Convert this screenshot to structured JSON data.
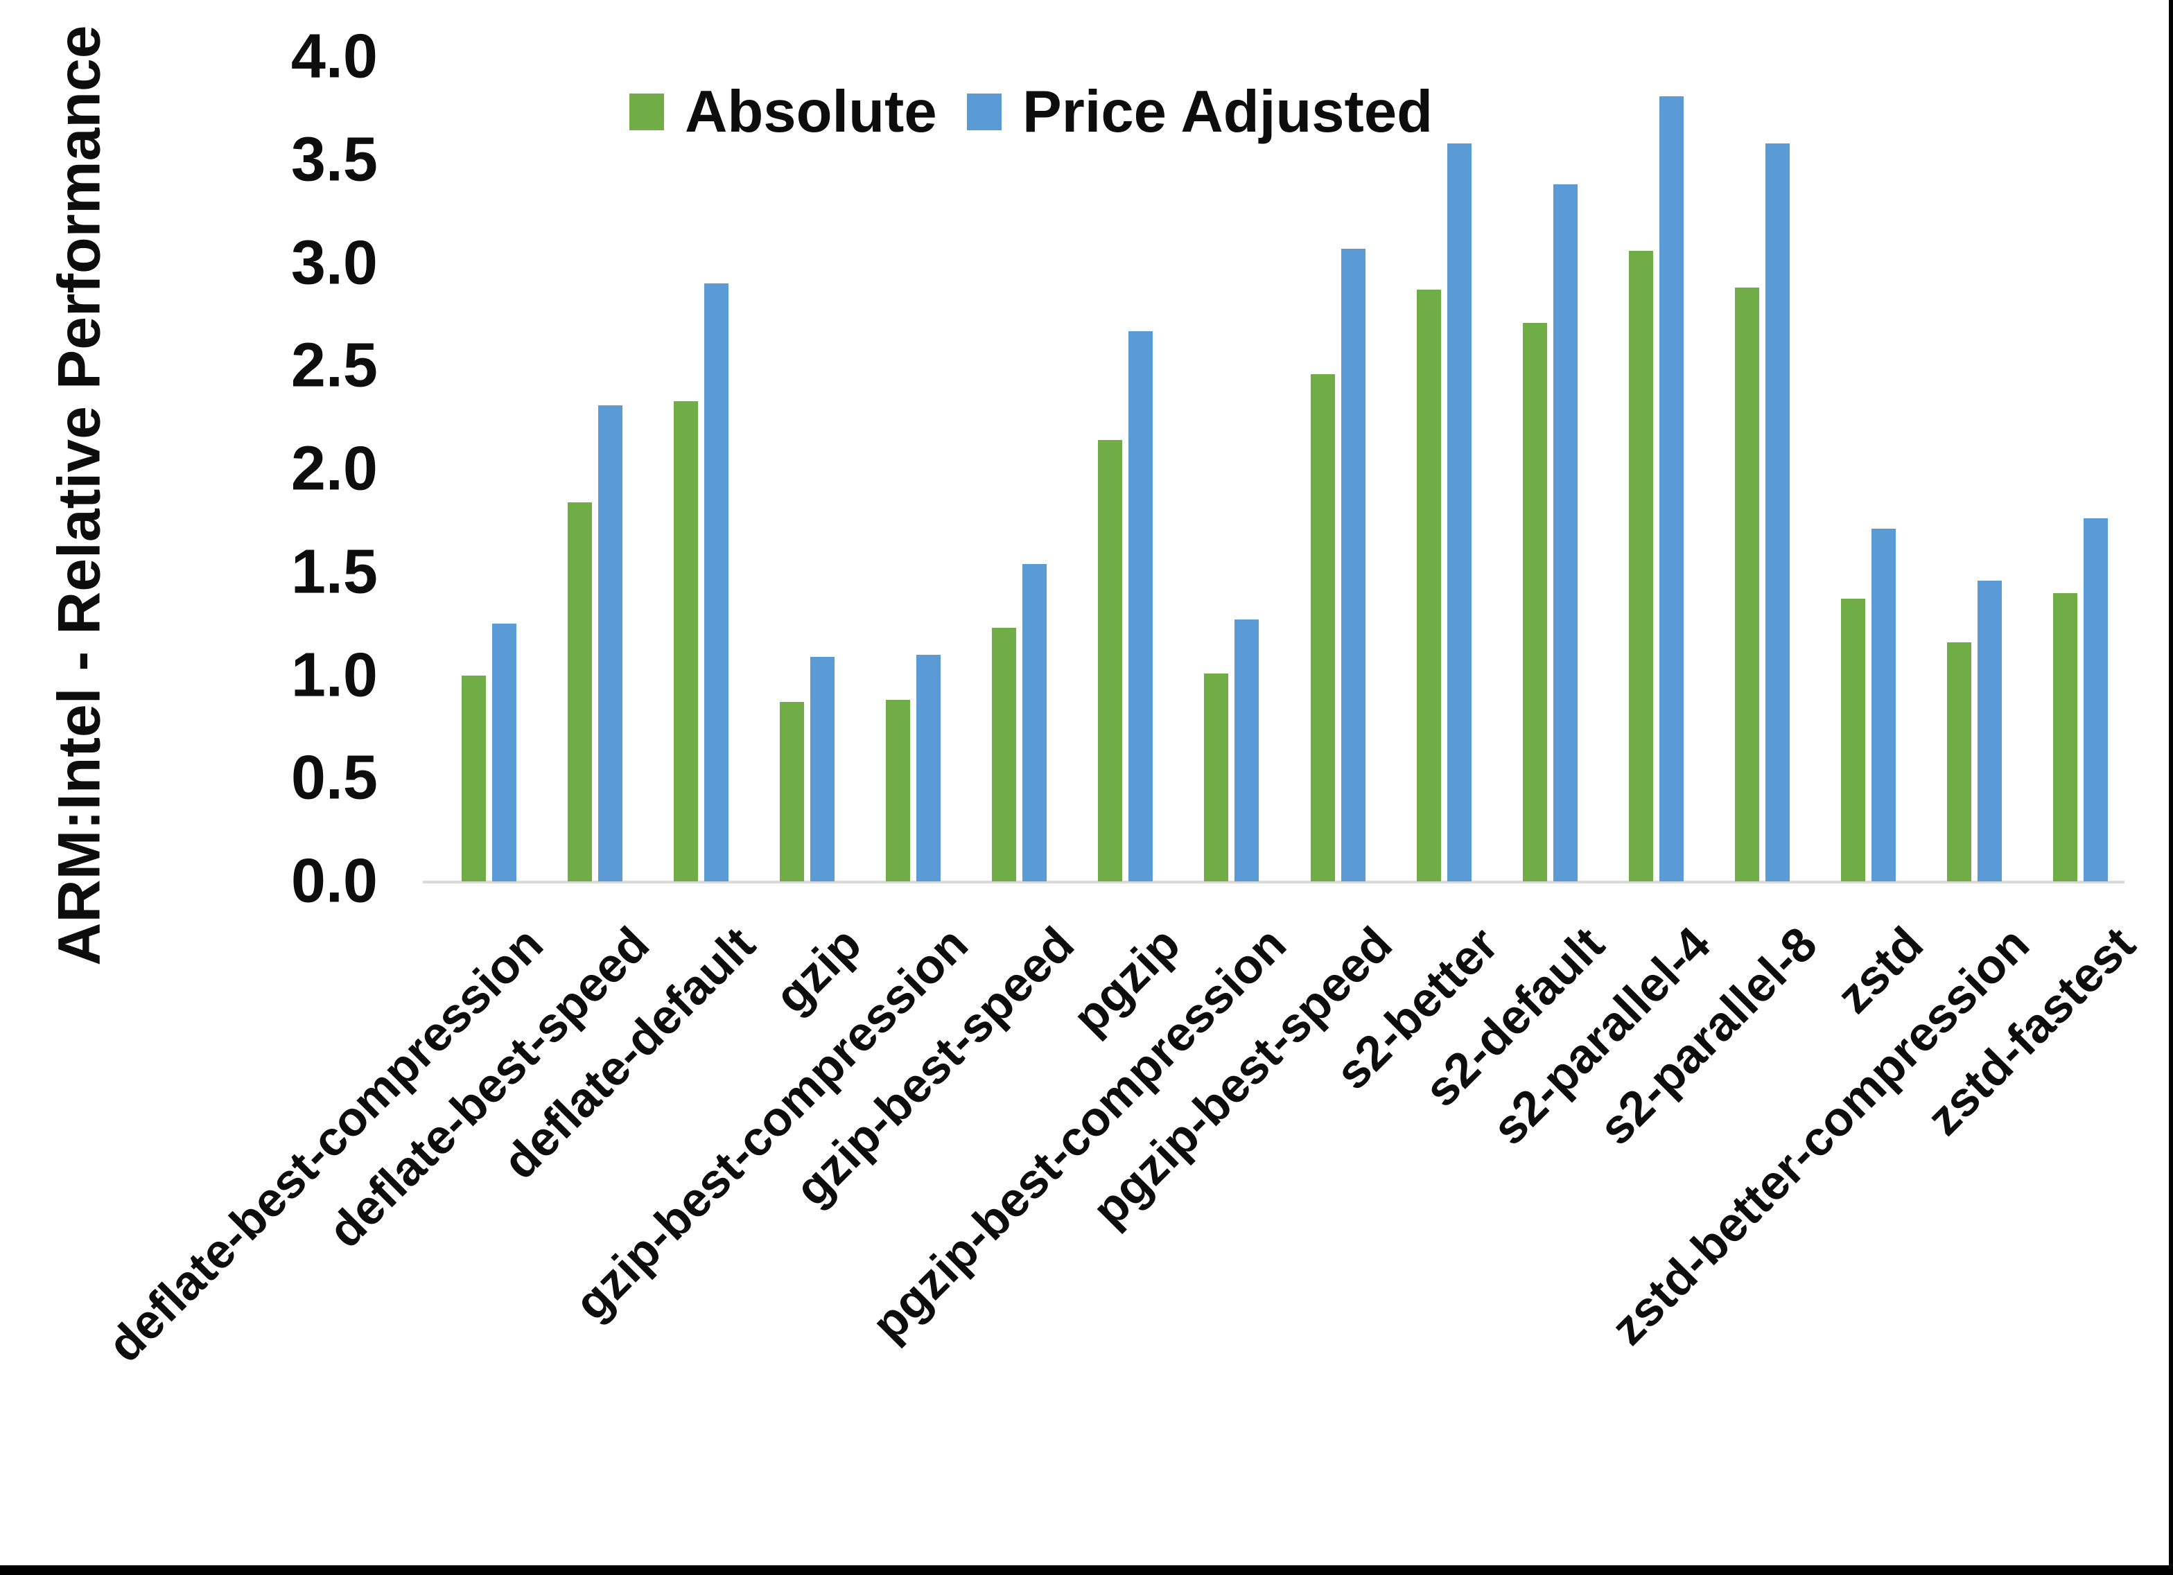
{
  "chart_data": {
    "type": "bar",
    "title": "",
    "ylabel": "ARM:Intel - Relative Performance",
    "xlabel": "",
    "ylim": [
      0,
      4
    ],
    "grid": false,
    "legend_position": "top-center",
    "y_axis": {
      "tick_labels": [
        "0.0",
        "0.5",
        "1.0",
        "1.5",
        "2.0",
        "2.5",
        "3.0",
        "3.5",
        "4.0"
      ],
      "tick_values": [
        0.0,
        0.5,
        1.0,
        1.5,
        2.0,
        2.5,
        3.0,
        3.5,
        4.0
      ]
    },
    "categories": [
      "deflate-best-compression",
      "deflate-best-speed",
      "deflate-default",
      "gzip",
      "gzip-best-compression",
      "gzip-best-speed",
      "pgzip",
      "pgzip-best-compression",
      "pgzip-best-speed",
      "s2-better",
      "s2-default",
      "s2-parallel-4",
      "s2-parallel-8",
      "zstd",
      "zstd-better-compression",
      "zstd-fastest"
    ],
    "series": [
      {
        "name": "Absolute",
        "color": "#70AD47",
        "values": [
          1.0,
          1.84,
          2.33,
          0.87,
          0.88,
          1.23,
          2.14,
          1.01,
          2.46,
          2.87,
          2.71,
          3.06,
          2.88,
          1.37,
          1.16,
          1.4
        ]
      },
      {
        "name": "Price Adjusted",
        "color": "#5B9BD5",
        "values": [
          1.25,
          2.31,
          2.9,
          1.09,
          1.1,
          1.54,
          2.67,
          1.27,
          3.07,
          3.58,
          3.38,
          3.81,
          3.58,
          1.71,
          1.46,
          1.76
        ]
      }
    ],
    "colors": {
      "axis_line": "#D9D9D9",
      "text": "#0D0D0D",
      "background": "#FFFFFF"
    }
  }
}
